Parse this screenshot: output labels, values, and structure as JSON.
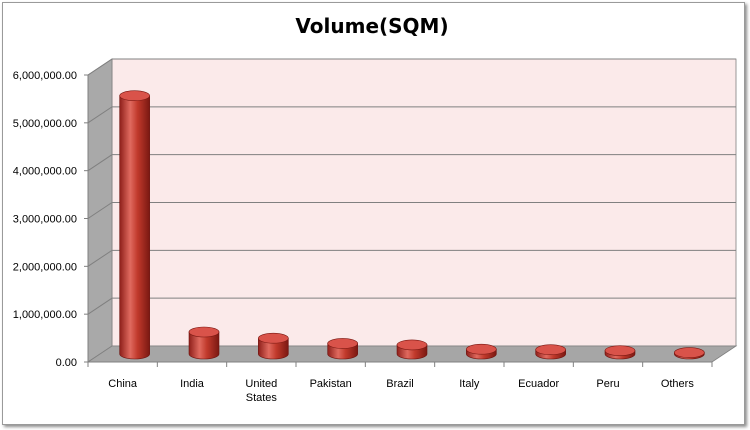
{
  "chart_data": {
    "type": "bar",
    "title": "Volume(SQM)",
    "xlabel": "",
    "ylabel": "",
    "categories": [
      "China",
      "India",
      "United States",
      "Pakistan",
      "Brazil",
      "Italy",
      "Ecuador",
      "Peru",
      "Others"
    ],
    "category_lines": [
      [
        "China"
      ],
      [
        "India"
      ],
      [
        "United",
        "States"
      ],
      [
        "Pakistan"
      ],
      [
        "Brazil"
      ],
      [
        "Italy"
      ],
      [
        "Ecuador"
      ],
      [
        "Peru"
      ],
      [
        "Others"
      ]
    ],
    "values": [
      5400000,
      460000,
      330000,
      220000,
      190000,
      100000,
      90000,
      70000,
      30000
    ],
    "ylim": [
      0,
      6000000
    ],
    "yticks": [
      0,
      1000000,
      2000000,
      3000000,
      4000000,
      5000000,
      6000000
    ],
    "ytick_labels": [
      "0.00",
      "1,000,000.00",
      "2,000,000.00",
      "3,000,000.00",
      "4,000,000.00",
      "5,000,000.00",
      "6,000,000.00"
    ],
    "grid": true,
    "legend": "none",
    "colors": {
      "bar": "#c0392b",
      "wall": "#fbeaea",
      "side_wall": "#a9a9a9",
      "floor": "#a6a6a6",
      "grid": "#808080"
    }
  }
}
